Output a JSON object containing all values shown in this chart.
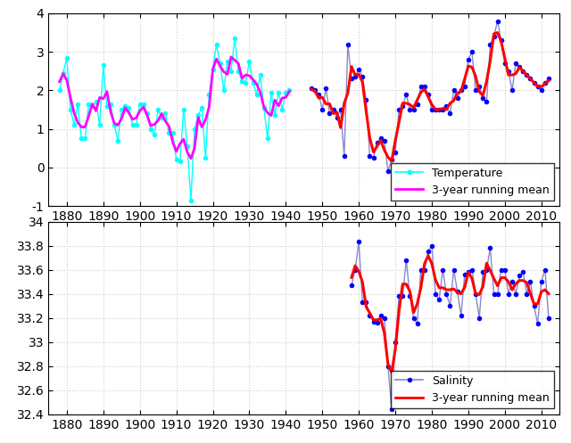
{
  "temp_years_left": [
    1878,
    1879,
    1880,
    1881,
    1882,
    1883,
    1884,
    1885,
    1886,
    1887,
    1888,
    1889,
    1890,
    1891,
    1892,
    1893,
    1894,
    1895,
    1896,
    1897,
    1898,
    1899,
    1900,
    1901,
    1902,
    1903,
    1904,
    1905,
    1906,
    1907,
    1908,
    1909,
    1910,
    1911,
    1912,
    1913,
    1914,
    1915,
    1916,
    1917,
    1918,
    1919,
    1920,
    1921,
    1922,
    1923,
    1924,
    1925,
    1926,
    1927,
    1928,
    1929,
    1930,
    1931,
    1932,
    1933,
    1934,
    1935,
    1936,
    1937,
    1938,
    1939,
    1940,
    1941
  ],
  "temp_values_left": [
    2.0,
    2.45,
    2.85,
    1.5,
    1.1,
    1.65,
    0.75,
    0.75,
    1.65,
    1.6,
    1.7,
    1.1,
    2.65,
    1.6,
    1.65,
    1.1,
    0.7,
    1.5,
    1.6,
    1.55,
    1.1,
    1.1,
    1.65,
    1.65,
    1.4,
    1.0,
    0.85,
    1.5,
    1.3,
    1.4,
    0.9,
    0.9,
    0.2,
    0.15,
    1.5,
    0.55,
    -0.85,
    1.0,
    1.35,
    1.55,
    0.25,
    1.9,
    2.55,
    3.2,
    2.7,
    2.0,
    2.75,
    2.5,
    3.35,
    2.5,
    2.25,
    2.2,
    2.75,
    2.2,
    1.9,
    2.4,
    1.55,
    0.75,
    1.95,
    1.35,
    1.95,
    1.5,
    1.95,
    2.0
  ],
  "temp_years_right": [
    1947,
    1948,
    1949,
    1950,
    1951,
    1952,
    1953,
    1954,
    1955,
    1956,
    1957,
    1958,
    1959,
    1960,
    1961,
    1962,
    1963,
    1964,
    1965,
    1966,
    1967,
    1968,
    1969,
    1970,
    1971,
    1972,
    1973,
    1974,
    1975,
    1976,
    1977,
    1978,
    1979,
    1980,
    1981,
    1982,
    1983,
    1984,
    1985,
    1986,
    1987,
    1988,
    1989,
    1990,
    1991,
    1992,
    1993,
    1994,
    1995,
    1996,
    1997,
    1998,
    1999,
    2000,
    2001,
    2002,
    2003,
    2004,
    2005,
    2006,
    2007,
    2008,
    2009,
    2010,
    2011,
    2012
  ],
  "temp_values_right": [
    2.05,
    2.0,
    1.9,
    1.5,
    2.05,
    1.4,
    1.5,
    1.3,
    1.5,
    0.3,
    3.2,
    2.3,
    2.35,
    2.55,
    2.35,
    1.75,
    0.3,
    0.25,
    0.65,
    0.75,
    0.7,
    -0.1,
    0.2,
    0.4,
    1.5,
    1.6,
    1.9,
    1.5,
    1.5,
    1.65,
    2.1,
    2.1,
    1.9,
    1.5,
    1.5,
    1.5,
    1.5,
    1.6,
    1.4,
    2.0,
    1.8,
    2.0,
    2.1,
    2.8,
    3.0,
    2.0,
    2.1,
    1.8,
    1.7,
    3.2,
    3.4,
    3.8,
    3.3,
    2.7,
    2.5,
    2.0,
    2.7,
    2.6,
    2.5,
    2.4,
    2.3,
    2.2,
    2.1,
    2.0,
    2.2,
    2.3
  ],
  "sal_years": [
    1958,
    1959,
    1960,
    1961,
    1962,
    1963,
    1964,
    1965,
    1966,
    1967,
    1968,
    1969,
    1970,
    1971,
    1972,
    1973,
    1974,
    1975,
    1976,
    1977,
    1978,
    1979,
    1980,
    1981,
    1982,
    1983,
    1984,
    1985,
    1986,
    1987,
    1988,
    1989,
    1990,
    1991,
    1992,
    1993,
    1994,
    1995,
    1996,
    1997,
    1998,
    1999,
    2000,
    2001,
    2002,
    2003,
    2004,
    2005,
    2006,
    2007,
    2008,
    2009,
    2010,
    2011,
    2012
  ],
  "sal_values": [
    33.47,
    33.6,
    33.83,
    33.33,
    33.33,
    33.22,
    33.17,
    33.16,
    33.22,
    33.2,
    32.8,
    32.44,
    33.0,
    33.38,
    33.38,
    33.68,
    33.38,
    33.2,
    33.15,
    33.6,
    33.6,
    33.75,
    33.8,
    33.4,
    33.35,
    33.6,
    33.4,
    33.3,
    33.6,
    33.42,
    33.22,
    33.56,
    33.58,
    33.6,
    33.4,
    33.2,
    33.58,
    33.6,
    33.78,
    33.4,
    33.4,
    33.6,
    33.6,
    33.4,
    33.5,
    33.4,
    33.55,
    33.58,
    33.4,
    33.5,
    33.3,
    33.15,
    33.5,
    33.6,
    33.2
  ],
  "temp_color_left": "#00FFFF",
  "temp_mean_color_left": "#FF00FF",
  "temp_color_right": "#8888CC",
  "temp_mean_color_right": "#FF0000",
  "temp_marker_right": "#0000FF",
  "sal_line_color": "#8888CC",
  "sal_marker_color": "#0000FF",
  "sal_mean_color": "#FF0000",
  "bg_color": "#F0F0F0",
  "grid_color": "#CCCCCC",
  "ylim_temp": [
    -1,
    4
  ],
  "ylim_sal": [
    32.4,
    34.0
  ],
  "yticks_temp": [
    -1,
    0,
    1,
    2,
    3,
    4
  ],
  "yticks_sal": [
    32.4,
    32.6,
    32.8,
    33.0,
    33.2,
    33.4,
    33.6,
    33.8,
    34.0
  ],
  "xticks": [
    1880,
    1890,
    1900,
    1910,
    1920,
    1930,
    1940,
    1950,
    1960,
    1970,
    1980,
    1990,
    2000,
    2010
  ],
  "xlim": [
    1875,
    2015
  ],
  "legend_temp_label1": "Temperature",
  "legend_temp_label2": "3-year running mean",
  "legend_sal_label1": "Salinity",
  "legend_sal_label2": "3-year running mean",
  "tick_fontsize": 10,
  "legend_fontsize": 9
}
